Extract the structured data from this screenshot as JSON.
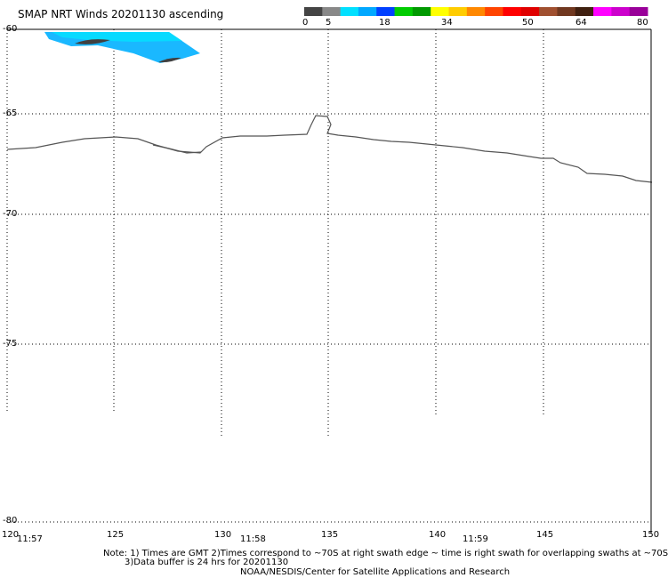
{
  "title": "SMAP NRT Winds 20201130 ascending",
  "colorbar": {
    "ticks": [
      "0",
      "5",
      "18",
      "34",
      "50",
      "64",
      "80"
    ],
    "colors": [
      "#444444",
      "#888888",
      "#00e0ff",
      "#00a8ff",
      "#0040ff",
      "#00cc00",
      "#009900",
      "#ffff00",
      "#ffcc00",
      "#ff8800",
      "#ff4400",
      "#ff0000",
      "#e00000",
      "#a05030",
      "#703820",
      "#402010",
      "#ff00ff",
      "#cc00cc",
      "#990099"
    ]
  },
  "map": {
    "latitudes": [
      "-60",
      "-65",
      "-70",
      "-75",
      "-80"
    ],
    "longitudes": [
      "120",
      "125",
      "130",
      "135",
      "140",
      "145",
      "150"
    ],
    "times": [
      "11:57",
      "11:58",
      "11:59"
    ],
    "coastline_color": "#555555",
    "swath_color": "#1ab8ff"
  },
  "notes": {
    "line1": "Note: 1) Times are GMT 2)Times correspond to ~70S at right swath edge ~ time is right swath for overlapping swaths at ~70S",
    "line2": "3)Data buffer is 24 hrs for 20201130",
    "line3": "NOAA/NESDIS/Center for Satellite Applications and Research"
  }
}
